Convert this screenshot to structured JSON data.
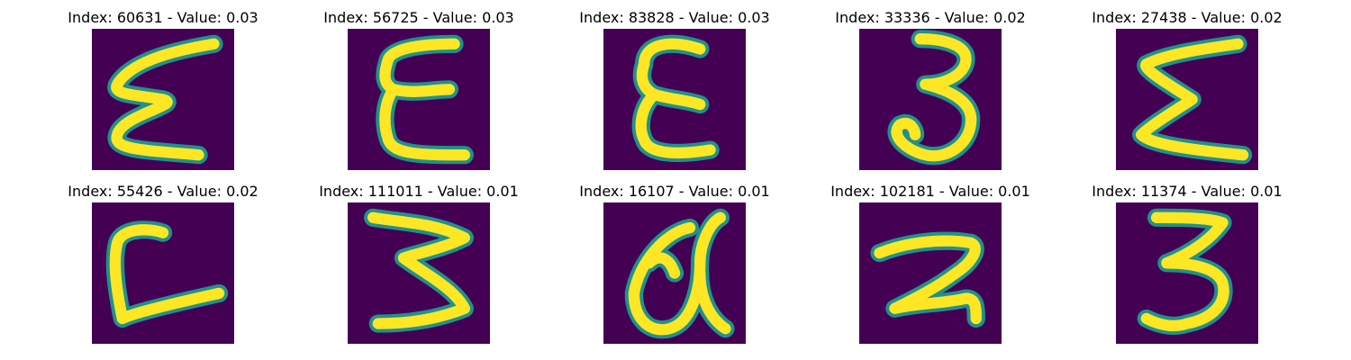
{
  "colors": {
    "background": "#440154",
    "stroke_edge": "#21918c",
    "stroke_core": "#fde725"
  },
  "panels": [
    {
      "title": "Index: 60631 - Value: 0.03",
      "glyph": "sigma-like-stroke"
    },
    {
      "title": "Index: 56725 - Value: 0.03",
      "glyph": "reversed-3-like-stroke"
    },
    {
      "title": "Index: 83828 - Value: 0.03",
      "glyph": "epsilon-like-stroke"
    },
    {
      "title": "Index: 33336 - Value: 0.02",
      "glyph": "digit-3"
    },
    {
      "title": "Index: 27438 - Value: 0.02",
      "glyph": "sigma-like-stroke"
    },
    {
      "title": "Index: 55426 - Value: 0.02",
      "glyph": "c-like-stroke"
    },
    {
      "title": "Index: 111011 - Value: 0.01",
      "glyph": "digit-3"
    },
    {
      "title": "Index: 16107 - Value: 0.01",
      "glyph": "letter-a"
    },
    {
      "title": "Index: 102181 - Value: 0.01",
      "glyph": "digit-2"
    },
    {
      "title": "Index: 11374 - Value: 0.01",
      "glyph": "digit-3"
    }
  ]
}
